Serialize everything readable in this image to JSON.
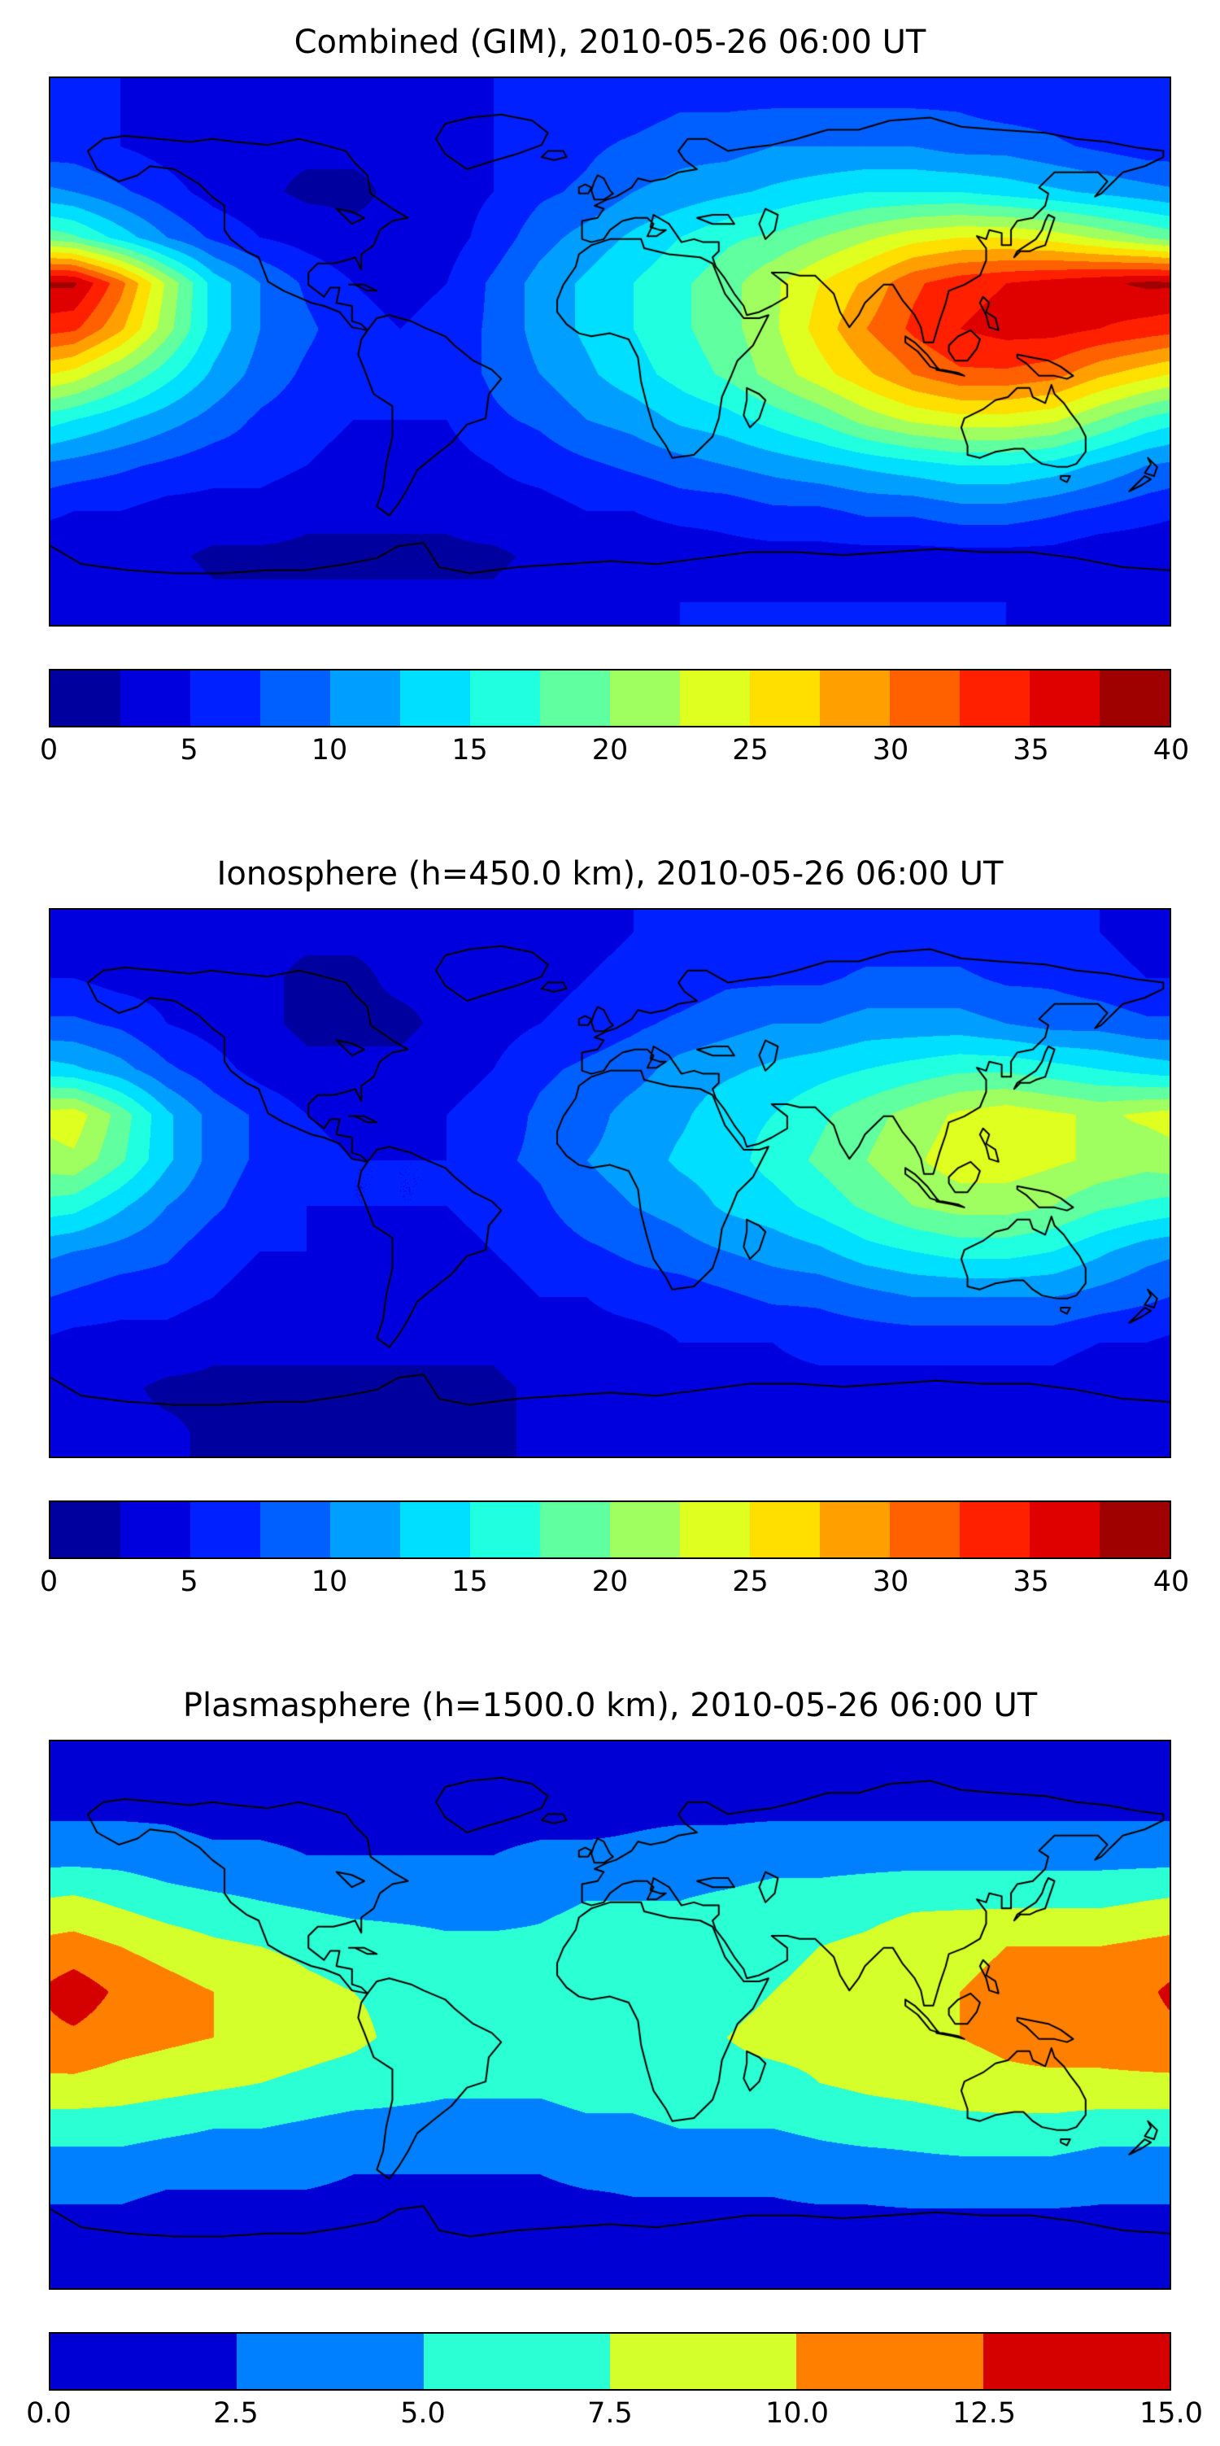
{
  "figure": {
    "background_color": "#ffffff",
    "coastline_color": "#000000",
    "colormap": "jet",
    "panel_count": 3
  },
  "chart_data": [
    {
      "type": "heatmap",
      "title": "Combined (GIM), 2010-05-26 06:00 UT",
      "colormap": "jet",
      "value_range": [
        0,
        40
      ],
      "n_levels": 16,
      "colorbar_ticks": [
        "0",
        "5",
        "10",
        "15",
        "20",
        "25",
        "30",
        "35",
        "40"
      ],
      "extent": {
        "lon_min": -180,
        "lon_max": 180,
        "lat_min": -90,
        "lat_max": 90
      },
      "grid": {
        "lon_centers_start": -172.5,
        "lon_step": 15,
        "lat_centers_start": 82.5,
        "lat_step": -15,
        "values": [
          [
            5,
            5,
            4,
            4,
            4,
            4,
            4,
            4,
            4,
            5,
            5,
            6,
            6,
            7,
            7,
            7,
            7,
            7,
            7,
            7,
            6,
            6,
            5,
            5
          ],
          [
            6,
            5,
            4,
            3,
            3,
            3,
            3,
            3,
            4,
            5,
            6,
            7,
            8,
            9,
            9,
            10,
            10,
            10,
            10,
            9,
            9,
            8,
            7,
            6
          ],
          [
            10,
            8,
            6,
            4,
            3,
            2,
            2,
            3,
            4,
            5,
            7,
            8,
            10,
            11,
            12,
            13,
            14,
            15,
            15,
            15,
            14,
            13,
            12,
            11
          ],
          [
            18,
            14,
            10,
            7,
            5,
            4,
            3,
            3,
            4,
            6,
            9,
            11,
            13,
            15,
            17,
            18,
            20,
            22,
            24,
            25,
            25,
            24,
            22,
            20
          ],
          [
            38,
            31,
            22,
            14,
            10,
            7,
            5,
            4,
            5,
            8,
            11,
            13,
            15,
            17,
            19,
            22,
            25,
            28,
            32,
            34,
            35,
            36,
            37,
            38
          ],
          [
            33,
            28,
            21,
            14,
            10,
            8,
            6,
            5,
            6,
            8,
            11,
            13,
            15,
            17,
            19,
            22,
            26,
            30,
            33,
            35,
            36,
            36,
            35,
            34
          ],
          [
            24,
            20,
            16,
            12,
            9,
            7,
            6,
            5,
            6,
            8,
            10,
            12,
            14,
            16,
            18,
            21,
            24,
            27,
            30,
            32,
            32,
            31,
            28,
            26
          ],
          [
            15,
            13,
            11,
            9,
            7,
            6,
            5,
            5,
            5,
            7,
            8,
            10,
            11,
            13,
            14,
            16,
            18,
            21,
            23,
            24,
            24,
            23,
            20,
            17
          ],
          [
            9,
            8,
            7,
            6,
            6,
            5,
            4,
            4,
            4,
            5,
            6,
            7,
            8,
            9,
            10,
            11,
            12,
            13,
            14,
            15,
            15,
            14,
            12,
            10
          ],
          [
            5,
            5,
            4,
            4,
            4,
            3,
            3,
            3,
            3,
            4,
            4,
            5,
            5,
            6,
            6,
            7,
            7,
            8,
            8,
            9,
            9,
            8,
            7,
            6
          ],
          [
            3,
            3,
            3,
            2,
            2,
            2,
            2,
            2,
            2,
            2,
            3,
            3,
            3,
            3,
            4,
            4,
            4,
            4,
            4,
            4,
            4,
            4,
            3,
            3
          ],
          [
            4,
            4,
            4,
            3,
            3,
            3,
            3,
            3,
            3,
            3,
            4,
            4,
            4,
            5,
            5,
            5,
            5,
            5,
            5,
            5,
            5,
            4,
            4,
            4
          ]
        ]
      }
    },
    {
      "type": "heatmap",
      "title": "Ionosphere  (h=450.0 km), 2010-05-26 06:00 UT",
      "colormap": "jet",
      "value_range": [
        0,
        40
      ],
      "n_levels": 16,
      "colorbar_ticks": [
        "0",
        "5",
        "10",
        "15",
        "20",
        "25",
        "30",
        "35",
        "40"
      ],
      "extent": {
        "lon_min": -180,
        "lon_max": 180,
        "lat_min": -90,
        "lat_max": 90
      },
      "grid": {
        "lon_centers_start": -172.5,
        "lon_step": 15,
        "lat_centers_start": 82.5,
        "lat_step": -15,
        "values": [
          [
            4,
            4,
            3,
            3,
            3,
            3,
            3,
            3,
            3,
            3,
            4,
            4,
            5,
            5,
            5,
            6,
            6,
            6,
            6,
            6,
            5,
            5,
            5,
            4
          ],
          [
            5,
            4,
            4,
            3,
            3,
            2,
            2,
            3,
            3,
            3,
            4,
            5,
            6,
            6,
            7,
            7,
            7,
            8,
            8,
            8,
            7,
            7,
            6,
            5
          ],
          [
            8,
            7,
            5,
            4,
            3,
            2,
            2,
            2,
            3,
            4,
            5,
            6,
            7,
            8,
            9,
            10,
            10,
            11,
            11,
            11,
            10,
            9,
            9,
            8
          ],
          [
            13,
            11,
            8,
            6,
            4,
            3,
            3,
            3,
            4,
            5,
            7,
            8,
            9,
            11,
            12,
            13,
            14,
            15,
            16,
            17,
            17,
            16,
            15,
            14
          ],
          [
            24,
            19,
            13,
            9,
            7,
            5,
            4,
            4,
            5,
            6,
            8,
            9,
            11,
            12,
            14,
            15,
            17,
            19,
            21,
            23,
            24,
            23,
            22,
            23
          ],
          [
            22,
            18,
            13,
            9,
            7,
            6,
            5,
            5,
            5,
            7,
            8,
            10,
            11,
            13,
            14,
            16,
            18,
            20,
            22,
            24,
            24,
            23,
            22,
            21
          ],
          [
            16,
            13,
            10,
            8,
            6,
            5,
            5,
            5,
            5,
            6,
            7,
            9,
            10,
            11,
            13,
            14,
            16,
            18,
            20,
            21,
            21,
            20,
            18,
            17
          ],
          [
            10,
            9,
            8,
            6,
            5,
            5,
            4,
            4,
            4,
            5,
            6,
            7,
            8,
            9,
            10,
            11,
            12,
            14,
            15,
            16,
            16,
            15,
            13,
            11
          ],
          [
            7,
            6,
            6,
            5,
            4,
            4,
            3,
            3,
            4,
            4,
            5,
            5,
            6,
            6,
            7,
            8,
            8,
            9,
            10,
            10,
            10,
            10,
            9,
            8
          ],
          [
            4,
            4,
            4,
            3,
            3,
            3,
            3,
            3,
            3,
            3,
            4,
            4,
            4,
            5,
            5,
            5,
            6,
            6,
            6,
            6,
            6,
            6,
            5,
            5
          ],
          [
            3,
            3,
            2,
            2,
            2,
            2,
            2,
            2,
            2,
            2,
            3,
            3,
            3,
            3,
            3,
            4,
            4,
            4,
            4,
            4,
            4,
            4,
            3,
            3
          ],
          [
            3,
            3,
            3,
            2,
            2,
            2,
            2,
            2,
            2,
            2,
            3,
            3,
            3,
            3,
            3,
            3,
            4,
            4,
            4,
            4,
            4,
            3,
            3,
            3
          ]
        ]
      }
    },
    {
      "type": "heatmap",
      "title": "Plasmasphere (h=1500.0 km), 2010-05-26 06:00 UT",
      "colormap": "jet",
      "value_range": [
        0,
        15
      ],
      "n_levels": 6,
      "colorbar_ticks": [
        "0.0",
        "2.5",
        "5.0",
        "7.5",
        "10.0",
        "12.5",
        "15.0"
      ],
      "extent": {
        "lon_min": -180,
        "lon_max": 180,
        "lat_min": -90,
        "lat_max": 90
      },
      "grid": {
        "lon_centers_start": -172.5,
        "lon_step": 15,
        "lat_centers_start": 82.5,
        "lat_step": -15,
        "values": [
          [
            1,
            1,
            1,
            1,
            1,
            1,
            1,
            1,
            1,
            1,
            1,
            1,
            1,
            1,
            1,
            1,
            1,
            1,
            1,
            1,
            1,
            1,
            1,
            1
          ],
          [
            2,
            2,
            2,
            1.5,
            1.5,
            1.5,
            1.5,
            1.5,
            1.5,
            1.5,
            1.5,
            1.5,
            2,
            2,
            2,
            2,
            2,
            2,
            2,
            2,
            2,
            2,
            2,
            2
          ],
          [
            4,
            4,
            3.5,
            3,
            3,
            2.5,
            2.5,
            2.5,
            2.5,
            2.5,
            3,
            3,
            3,
            3.5,
            3.5,
            4,
            4,
            4,
            4,
            4,
            4,
            4,
            4,
            4
          ],
          [
            8,
            7,
            6,
            5.5,
            5,
            4.5,
            4,
            4,
            4,
            4,
            4.5,
            5,
            5,
            5,
            5.5,
            6,
            6,
            6.5,
            7,
            7,
            7,
            7,
            7,
            7.5
          ],
          [
            11,
            10,
            9,
            8,
            7.5,
            7,
            6.5,
            6,
            5.5,
            5.5,
            5.5,
            6,
            6,
            6.5,
            7,
            7,
            7.5,
            8,
            9,
            9.5,
            10,
            10,
            10,
            10.5
          ],
          [
            14,
            12,
            11,
            10,
            9,
            8,
            7.5,
            7,
            6.5,
            6,
            6,
            6,
            6.5,
            7,
            7,
            7.5,
            8,
            9,
            9.5,
            10,
            10.5,
            11,
            11,
            12
          ],
          [
            12,
            11,
            10.5,
            10,
            9,
            8.5,
            8,
            7,
            6.5,
            6,
            6,
            6,
            6.5,
            7,
            7.5,
            8,
            8,
            9,
            9.5,
            10,
            10.5,
            11,
            11,
            11.5
          ],
          [
            9.5,
            9,
            8.5,
            8,
            7.5,
            7,
            6.5,
            6,
            5.5,
            5.5,
            5.5,
            6,
            6,
            6.5,
            7,
            7,
            7.5,
            8,
            8.5,
            9,
            9.5,
            9.5,
            9.5,
            9.5
          ],
          [
            6,
            6,
            5.5,
            5,
            5,
            4.5,
            4,
            4,
            4,
            4,
            4,
            4.5,
            4.5,
            5,
            5,
            5,
            5.5,
            6,
            6,
            6.5,
            6.5,
            6.5,
            6,
            6
          ],
          [
            3.5,
            3.5,
            3,
            3,
            3,
            3,
            2.5,
            2.5,
            2.5,
            2.5,
            2.5,
            3,
            3,
            3,
            3,
            3,
            3.5,
            3.5,
            4,
            4,
            4,
            4,
            3.5,
            3.5
          ],
          [
            2,
            2,
            1.5,
            1.5,
            1.5,
            1.5,
            1.5,
            1.5,
            1.5,
            1.5,
            1.5,
            1.5,
            2,
            2,
            2,
            2,
            2,
            2,
            2,
            2,
            2,
            2,
            2,
            2
          ],
          [
            1,
            1,
            1,
            1,
            1,
            1,
            1,
            1,
            1,
            1,
            1,
            1,
            1,
            1,
            1,
            1,
            1,
            1,
            1,
            1,
            1,
            1,
            1,
            1
          ]
        ]
      }
    }
  ]
}
